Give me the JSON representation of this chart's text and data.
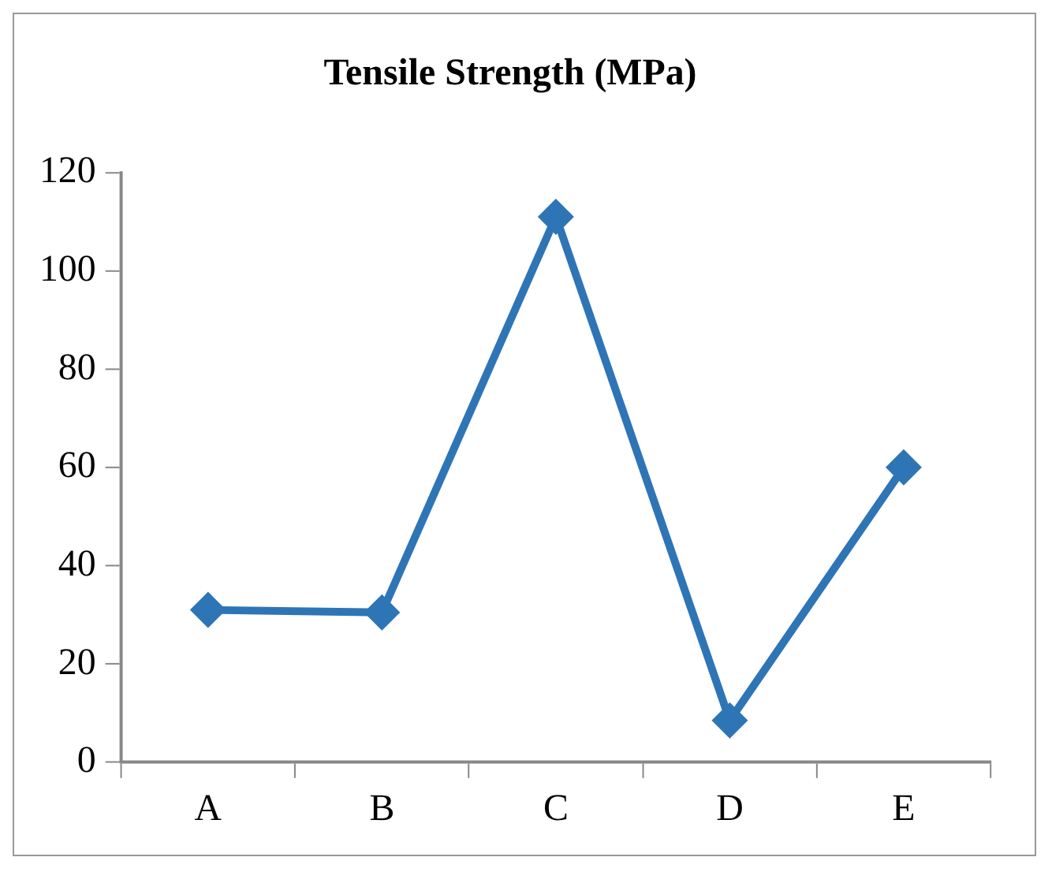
{
  "chart_data": {
    "type": "line",
    "title": "Tensile Strength (MPa)",
    "categories": [
      "A",
      "B",
      "C",
      "D",
      "E"
    ],
    "series": [
      {
        "color": "#2e75b6",
        "values": [
          31,
          30.5,
          111,
          8.5,
          60
        ]
      }
    ],
    "ylim": [
      0,
      120
    ],
    "yticks": [
      0,
      20,
      40,
      60,
      80,
      100,
      120
    ],
    "grid": false,
    "legend": false,
    "marker": "diamond",
    "line_style": "solid"
  }
}
